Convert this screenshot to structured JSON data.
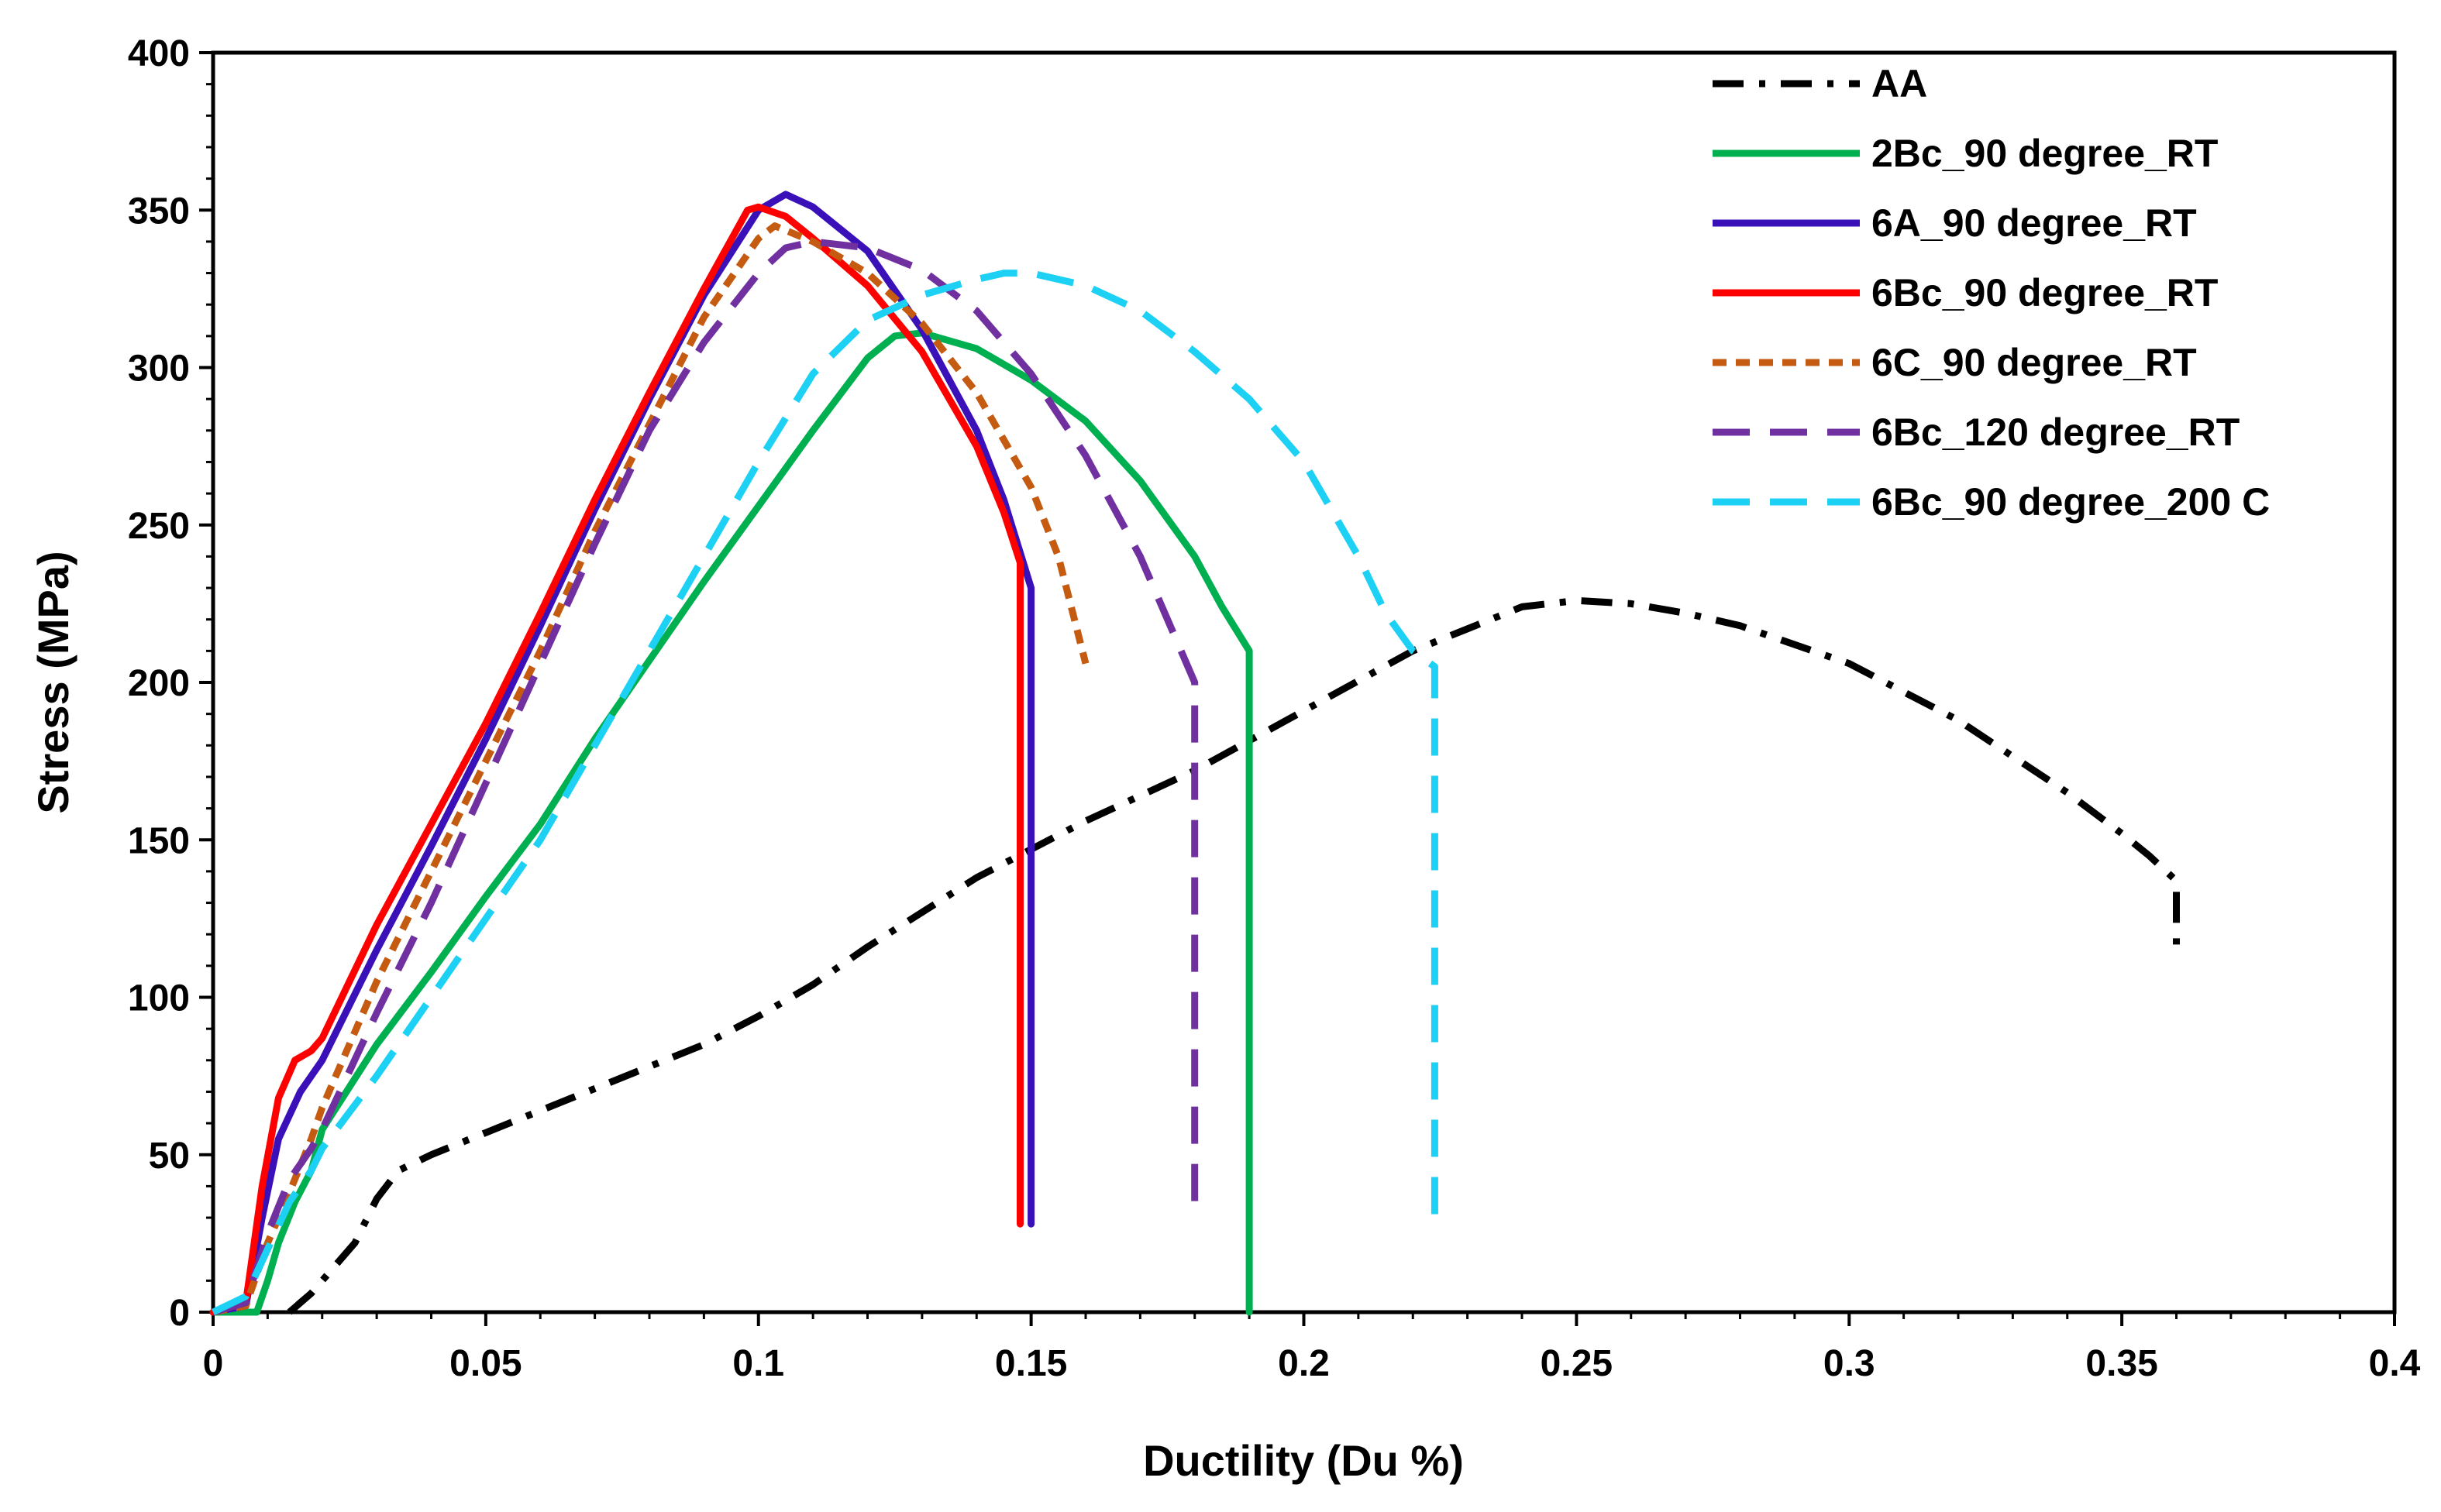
{
  "chart_data": {
    "type": "line",
    "xlabel": "Ductility (Du %)",
    "ylabel": "Stress (MPa)",
    "xlim": [
      0,
      0.4
    ],
    "ylim": [
      0,
      400
    ],
    "xticks": [
      0,
      0.05,
      0.1,
      0.15,
      0.2,
      0.25,
      0.3,
      0.35,
      0.4
    ],
    "xtick_labels": [
      "0",
      "0.05",
      "0.1",
      "0.15",
      "0.2",
      "0.25",
      "0.3",
      "0.35",
      "0.4"
    ],
    "yticks": [
      0,
      50,
      100,
      150,
      200,
      250,
      300,
      350,
      400
    ],
    "ytick_labels": [
      "0",
      "50",
      "100",
      "150",
      "200",
      "250",
      "300",
      "350",
      "400"
    ],
    "grid": false,
    "legend_position": "top-right",
    "series": [
      {
        "name": "AA",
        "color": "#000000",
        "dash": "dashdot",
        "x": [
          0.014,
          0.018,
          0.022,
          0.026,
          0.03,
          0.034,
          0.04,
          0.05,
          0.06,
          0.07,
          0.08,
          0.09,
          0.1,
          0.11,
          0.12,
          0.14,
          0.16,
          0.18,
          0.2,
          0.22,
          0.24,
          0.25,
          0.26,
          0.27,
          0.28,
          0.3,
          0.32,
          0.34,
          0.35,
          0.355,
          0.36,
          0.36,
          0.36
        ],
        "y": [
          0,
          6,
          14,
          22,
          36,
          45,
          50,
          57,
          64,
          71,
          78,
          85,
          94,
          104,
          116,
          138,
          156,
          172,
          191,
          210,
          224,
          226,
          225,
          222,
          218,
          206,
          188,
          165,
          152,
          145,
          137,
          125,
          112
        ]
      },
      {
        "name": "2Bc_90 degree_RT",
        "color": "#00B050",
        "dash": "solid",
        "x": [
          0,
          0.008,
          0.01,
          0.012,
          0.015,
          0.018,
          0.02,
          0.03,
          0.04,
          0.05,
          0.06,
          0.07,
          0.08,
          0.09,
          0.1,
          0.11,
          0.12,
          0.125,
          0.13,
          0.14,
          0.15,
          0.16,
          0.17,
          0.18,
          0.185,
          0.19,
          0.19,
          0.19
        ],
        "y": [
          0,
          0,
          10,
          22,
          35,
          45,
          58,
          85,
          108,
          132,
          155,
          182,
          207,
          232,
          256,
          280,
          303,
          310,
          311,
          306,
          296,
          283,
          264,
          240,
          224,
          210,
          100,
          0
        ]
      },
      {
        "name": "6A_90 degree_RT",
        "color": "#3A10B8",
        "dash": "solid",
        "x": [
          0,
          0.006,
          0.009,
          0.012,
          0.016,
          0.02,
          0.03,
          0.04,
          0.05,
          0.06,
          0.07,
          0.08,
          0.09,
          0.1,
          0.105,
          0.11,
          0.12,
          0.13,
          0.14,
          0.145,
          0.15,
          0.15,
          0.15
        ],
        "y": [
          0,
          2,
          30,
          55,
          70,
          80,
          115,
          148,
          182,
          218,
          255,
          290,
          323,
          350,
          355,
          351,
          337,
          312,
          280,
          258,
          230,
          130,
          28
        ]
      },
      {
        "name": "6Bc_90 degree_RT",
        "color": "#FF0000",
        "dash": "solid",
        "x": [
          0,
          0.006,
          0.009,
          0.012,
          0.015,
          0.018,
          0.02,
          0.025,
          0.03,
          0.04,
          0.05,
          0.06,
          0.07,
          0.08,
          0.09,
          0.098,
          0.1,
          0.105,
          0.11,
          0.12,
          0.13,
          0.14,
          0.145,
          0.148,
          0.148,
          0.148
        ],
        "y": [
          0,
          3,
          40,
          68,
          80,
          83,
          87,
          105,
          123,
          155,
          187,
          222,
          258,
          292,
          325,
          350,
          351,
          348,
          341,
          326,
          305,
          275,
          254,
          238,
          120,
          28
        ]
      },
      {
        "name": "6C_90 degree_RT",
        "color": "#C55A11",
        "dash": "shortdash",
        "x": [
          0,
          0.006,
          0.01,
          0.014,
          0.018,
          0.02,
          0.025,
          0.03,
          0.04,
          0.05,
          0.06,
          0.07,
          0.08,
          0.09,
          0.1,
          0.103,
          0.11,
          0.12,
          0.13,
          0.14,
          0.15,
          0.155,
          0.16
        ],
        "y": [
          0,
          2,
          22,
          38,
          55,
          65,
          85,
          105,
          140,
          175,
          210,
          248,
          282,
          316,
          341,
          345,
          340,
          330,
          314,
          292,
          262,
          240,
          206
        ]
      },
      {
        "name": "6Bc_120 degree_RT",
        "color": "#7030A0",
        "dash": "longdash",
        "x": [
          0,
          0.006,
          0.01,
          0.014,
          0.018,
          0.02,
          0.03,
          0.04,
          0.05,
          0.06,
          0.07,
          0.08,
          0.09,
          0.1,
          0.105,
          0.11,
          0.12,
          0.13,
          0.14,
          0.15,
          0.16,
          0.17,
          0.175,
          0.18,
          0.18,
          0.18
        ],
        "y": [
          0,
          3,
          25,
          42,
          52,
          58,
          95,
          130,
          168,
          206,
          244,
          280,
          308,
          330,
          338,
          340,
          338,
          331,
          318,
          298,
          272,
          240,
          220,
          200,
          120,
          30
        ]
      },
      {
        "name": "6Bc_90 degree_200 C",
        "color": "#1CD1F3",
        "dash": "longdash",
        "x": [
          0,
          0.006,
          0.01,
          0.014,
          0.018,
          0.02,
          0.03,
          0.04,
          0.05,
          0.06,
          0.07,
          0.08,
          0.09,
          0.1,
          0.11,
          0.12,
          0.13,
          0.14,
          0.145,
          0.15,
          0.16,
          0.17,
          0.18,
          0.19,
          0.2,
          0.21,
          0.215,
          0.22,
          0.224,
          0.224,
          0.224
        ],
        "y": [
          0,
          5,
          20,
          35,
          45,
          52,
          75,
          100,
          125,
          150,
          180,
          210,
          240,
          270,
          298,
          315,
          323,
          328,
          330,
          330,
          326,
          318,
          305,
          290,
          270,
          240,
          222,
          210,
          205,
          120,
          30
        ]
      }
    ]
  }
}
